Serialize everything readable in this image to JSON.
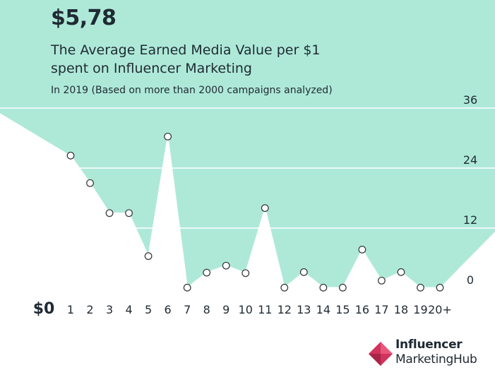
{
  "headline": "$5,78",
  "chart_data": {
    "type": "line",
    "title": "The Average Earned Media Value per $1 spent on Influencer Marketing",
    "subtitle": "In 2019 (Based on more than 2000 campaigns analyzed)",
    "categories": [
      "$0",
      "1",
      "2",
      "3",
      "4",
      "5",
      "6",
      "7",
      "8",
      "9",
      "10",
      "11",
      "12",
      "13",
      "14",
      "15",
      "16",
      "17",
      "18",
      "19",
      "20+"
    ],
    "values": [
      null,
      26.5,
      21,
      15,
      15,
      6.4,
      30.3,
      0.1,
      3.1,
      4.5,
      3,
      16,
      0.1,
      3.2,
      0.1,
      0.1,
      7.7,
      1.5,
      3.2,
      0.1,
      0.1
    ],
    "yticks": [
      0,
      12,
      24,
      36
    ],
    "ylim": [
      0,
      36
    ],
    "grid": true,
    "area_color": "#aee9d8",
    "line_color": "#ffffff",
    "marker_fill": "#ffffff",
    "marker_stroke": "#333333"
  },
  "logo": {
    "line1": "Influencer",
    "line2": "MarketingHub",
    "color": "#d0335c"
  }
}
